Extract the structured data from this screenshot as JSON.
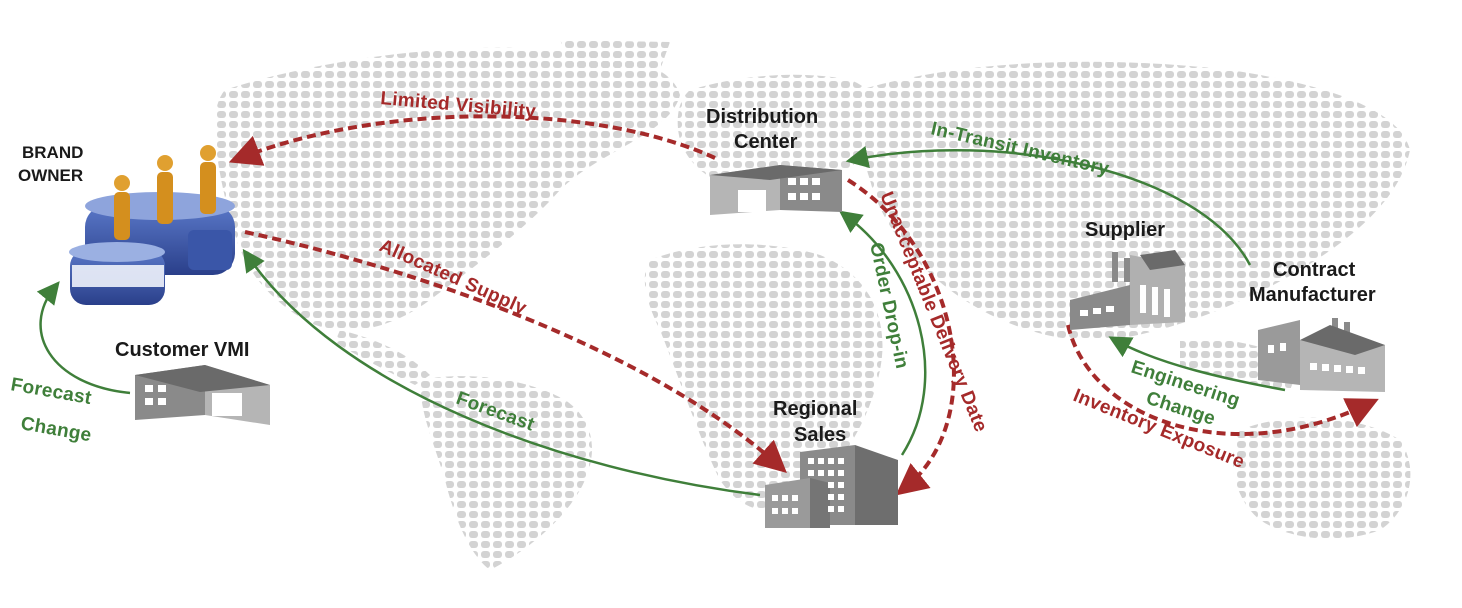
{
  "nodes": {
    "brand_owner": {
      "line1": "BRAND",
      "line2": "OWNER"
    },
    "customer_vmi": {
      "label": "Customer VMI"
    },
    "distribution_center": {
      "line1": "Distribution",
      "line2": "Center"
    },
    "regional_sales": {
      "line1": "Regional",
      "line2": "Sales"
    },
    "supplier": {
      "label": "Supplier"
    },
    "contract_manufacturer": {
      "line1": "Contract",
      "line2": "Manufacturer"
    }
  },
  "flows": {
    "limited_visibility": "Limited Visibility",
    "allocated_supply": "Allocated Supply",
    "forecast": "Forecast",
    "forecast_change_1": "Forecast",
    "forecast_change_2": "Change",
    "in_transit_inventory": "In-Transit Inventory",
    "unacceptable_delivery_date": "Unacceptable Delivery Date",
    "order_drop_in": "Order Drop-in",
    "engineering_change_1": "Engineering",
    "engineering_change_2": "Change",
    "inventory_exposure": "Inventory Exposure"
  },
  "colors": {
    "risk_flow": "#a52a2a",
    "info_flow": "#3f7f3a",
    "map_dots": "#d3d3d3",
    "building": "#7a7a7a"
  },
  "icons": {
    "brand_owner": "people-on-blue-platform-icon",
    "customer_vmi": "warehouse-icon",
    "distribution_center": "warehouse-icon",
    "regional_sales": "office-building-icon",
    "supplier": "factory-icon",
    "contract_manufacturer": "factory-icon"
  }
}
